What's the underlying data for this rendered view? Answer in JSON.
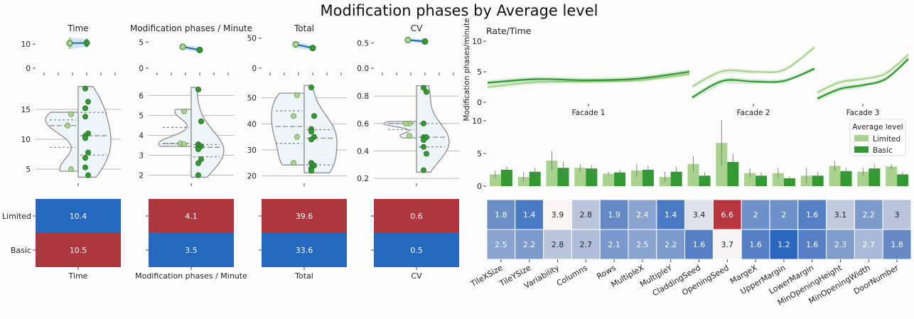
{
  "title": "Modification phases by Average level",
  "colors": {
    "limited": "#a8d28e",
    "basic": "#339933",
    "red": "#ad363f",
    "blue": "#2468c0",
    "violin_fill": "#eef5f8",
    "violin_edge": "#8c8c8c",
    "trend": "#2372b8"
  },
  "chart_data": [
    {
      "type": "dot",
      "panel": "Time",
      "title": "Time",
      "series": [
        {
          "name": "Limited",
          "values": [
            10.4
          ],
          "ci": [
            8.0,
            12.8
          ]
        },
        {
          "name": "Basic",
          "values": [
            10.5
          ],
          "ci": [
            8.8,
            12.2
          ]
        }
      ],
      "ylim": [
        0,
        13
      ],
      "yticks": [
        0,
        10
      ],
      "ytick_labels": [
        "0",
        "10"
      ]
    },
    {
      "type": "violin",
      "panel": "Time",
      "series": [
        {
          "name": "Limited",
          "values": [
            14.2,
            12.3,
            5.0
          ]
        },
        {
          "name": "Basic",
          "values": [
            18.5,
            16.3,
            15.2,
            13.8,
            11.0,
            10.6,
            10.2,
            7.8,
            6.9,
            5.3,
            4.0
          ]
        }
      ],
      "ylim": [
        3,
        20
      ],
      "yticks": [
        5,
        10,
        15
      ],
      "ytick_labels": [
        "5",
        "10",
        "15"
      ]
    },
    {
      "type": "heatmap",
      "panel": "Time",
      "rows": [
        "Limited",
        "Basic"
      ],
      "values": [
        [
          10.4
        ],
        [
          10.5
        ]
      ],
      "labels": [
        [
          "10.4"
        ],
        [
          "10.5"
        ]
      ],
      "colors": [
        [
          "#2468c0"
        ],
        [
          "#ad363f"
        ]
      ],
      "xlabel": "Time"
    },
    {
      "type": "dot",
      "panel": "Modification phases / Minute",
      "title": "Modification phases / Minute",
      "series": [
        {
          "name": "Limited",
          "values": [
            4.1
          ],
          "ci": [
            3.6,
            4.6
          ]
        },
        {
          "name": "Basic",
          "values": [
            3.5
          ],
          "ci": [
            3.0,
            4.0
          ]
        }
      ],
      "ylim": [
        0,
        6
      ],
      "yticks": [
        0,
        5
      ],
      "ytick_labels": [
        "0",
        "5"
      ]
    },
    {
      "type": "violin",
      "panel": "Modification phases / Minute",
      "series": [
        {
          "name": "Limited",
          "values": [
            5.2,
            3.6,
            3.55
          ]
        },
        {
          "name": "Basic",
          "values": [
            6.3,
            4.7,
            3.55,
            3.5,
            3.45,
            3.35,
            3.3,
            2.8,
            2.6,
            2.0
          ]
        }
      ],
      "ylim": [
        1.7,
        6.8
      ],
      "yticks": [
        2,
        3,
        4,
        5,
        6
      ],
      "ytick_labels": [
        "2",
        "3",
        "4",
        "5",
        "6"
      ]
    },
    {
      "type": "heatmap",
      "panel": "Modification phases / Minute",
      "rows": [
        "Limited",
        "Basic"
      ],
      "values": [
        [
          4.1
        ],
        [
          3.5
        ]
      ],
      "labels": [
        [
          "4.1"
        ],
        [
          "3.5"
        ]
      ],
      "colors": [
        [
          "#ad363f"
        ],
        [
          "#2468c0"
        ]
      ],
      "xlabel": "Modification phases / Minute"
    },
    {
      "type": "dot",
      "panel": "Total",
      "title": "Total",
      "series": [
        {
          "name": "Limited",
          "values": [
            39.6
          ],
          "ci": [
            34,
            45
          ]
        },
        {
          "name": "Basic",
          "values": [
            33.6
          ],
          "ci": [
            29,
            38
          ]
        }
      ],
      "ylim": [
        0,
        52
      ],
      "yticks": [
        0,
        50
      ],
      "ytick_labels": [
        "0",
        "50"
      ]
    },
    {
      "type": "violin",
      "panel": "Total",
      "series": [
        {
          "name": "Limited",
          "values": [
            51,
            43,
            35,
            25
          ]
        },
        {
          "name": "Basic",
          "values": [
            54,
            43,
            38,
            37,
            35,
            34,
            25,
            24,
            23,
            22
          ]
        }
      ],
      "ylim": [
        18,
        57
      ],
      "yticks": [
        20,
        30,
        40,
        50
      ],
      "ytick_labels": [
        "20",
        "30",
        "40",
        "50"
      ]
    },
    {
      "type": "heatmap",
      "panel": "Total",
      "rows": [
        "Limited",
        "Basic"
      ],
      "values": [
        [
          39.6
        ],
        [
          33.6
        ]
      ],
      "labels": [
        [
          "39.6"
        ],
        [
          "33.6"
        ]
      ],
      "colors": [
        [
          "#ad363f"
        ],
        [
          "#2468c0"
        ]
      ],
      "xlabel": "Total"
    },
    {
      "type": "dot",
      "panel": "CV",
      "title": "CV",
      "series": [
        {
          "name": "Limited",
          "values": [
            0.56
          ],
          "ci": [
            0.53,
            0.59
          ]
        },
        {
          "name": "Basic",
          "values": [
            0.53
          ],
          "ci": [
            0.48,
            0.58
          ]
        }
      ],
      "ylim": [
        0,
        0.62
      ],
      "yticks": [
        0.0,
        0.5
      ],
      "ytick_labels": [
        "0.0",
        "0.5"
      ]
    },
    {
      "type": "violin",
      "panel": "CV",
      "series": [
        {
          "name": "Limited",
          "values": [
            0.6,
            0.6,
            0.51
          ]
        },
        {
          "name": "Basic",
          "values": [
            0.86,
            0.83,
            0.6,
            0.5,
            0.5,
            0.48,
            0.43,
            0.38,
            0.26
          ]
        }
      ],
      "ylim": [
        0.18,
        0.92
      ],
      "yticks": [
        0.2,
        0.4,
        0.6,
        0.8
      ],
      "ytick_labels": [
        "0.2",
        "0.4",
        "0.6",
        "0.8"
      ]
    },
    {
      "type": "heatmap",
      "panel": "CV",
      "rows": [
        "Limited",
        "Basic"
      ],
      "values": [
        [
          0.6
        ],
        [
          0.5
        ]
      ],
      "labels": [
        [
          "0.6"
        ],
        [
          "0.5"
        ]
      ],
      "colors": [
        [
          "#ad363f"
        ],
        [
          "#2468c0"
        ]
      ],
      "xlabel": "CV"
    },
    {
      "type": "line",
      "title": "Rate/Time",
      "ylabel": "Modification phases/minute",
      "ylim": [
        0,
        10
      ],
      "yticks": [
        0,
        5,
        10
      ],
      "ytick_labels": [
        "0",
        "5",
        "10"
      ],
      "facets": [
        {
          "name": "Facade 1",
          "x": [
            0,
            0.25,
            0.5,
            0.75,
            1
          ],
          "series": [
            {
              "name": "Limited",
              "values": [
                2.5,
                3.3,
                3.4,
                3.6,
                4.6
              ]
            },
            {
              "name": "Basic",
              "values": [
                3.2,
                3.8,
                3.6,
                3.9,
                5.0
              ]
            }
          ]
        },
        {
          "name": "Facade 2",
          "x": [
            0,
            0.25,
            0.5,
            0.75,
            1
          ],
          "series": [
            {
              "name": "Limited",
              "values": [
                2.6,
                5.1,
                5.0,
                5.3,
                9.0
              ]
            },
            {
              "name": "Basic",
              "values": [
                0.8,
                3.5,
                3.4,
                3.5,
                5.5
              ]
            }
          ]
        },
        {
          "name": "Facade 3",
          "x": [
            0,
            0.25,
            0.5,
            0.75,
            1
          ],
          "series": [
            {
              "name": "Limited",
              "values": [
                1.6,
                3.3,
                3.8,
                4.7,
                7.8
              ]
            },
            {
              "name": "Basic",
              "values": [
                0.6,
                2.2,
                2.8,
                3.8,
                7.1
              ]
            }
          ]
        }
      ]
    },
    {
      "type": "bar",
      "categories": [
        "TileXSize",
        "TileYSize",
        "Variability",
        "Columns",
        "Rows",
        "MultipleX",
        "MultipleY",
        "CladdingSeed",
        "OpeningSeed",
        "MargeX",
        "UpperMargin",
        "LowerMargin",
        "MinOpeningHeight",
        "MinOpeningWidth",
        "DoorNumber"
      ],
      "series": [
        {
          "name": "Limited",
          "values": [
            1.8,
            1.4,
            3.9,
            2.8,
            1.9,
            2.4,
            1.4,
            3.4,
            6.6,
            2.0,
            2.0,
            1.6,
            3.1,
            2.2,
            3.0
          ]
        },
        {
          "name": "Basic",
          "values": [
            2.5,
            2.2,
            2.8,
            2.7,
            2.1,
            2.5,
            2.2,
            1.6,
            3.7,
            1.6,
            1.2,
            1.6,
            2.3,
            2.7,
            1.8
          ]
        }
      ],
      "errors": {
        "Limited": [
          0.6,
          0.7,
          1.5,
          0.6,
          0.3,
          1.0,
          0.8,
          1.2,
          3.5,
          0.7,
          0.8,
          1.2,
          0.8,
          0.6,
          0.4
        ],
        "Basic": [
          0.5,
          0.6,
          0.9,
          0.5,
          0.4,
          0.6,
          0.8,
          0.5,
          1.3,
          0.5,
          0.3,
          0.6,
          0.5,
          0.7,
          0.4
        ]
      },
      "ylim": [
        0,
        10
      ],
      "yticks": [
        0,
        5,
        10
      ],
      "ytick_labels": [
        "0",
        "5",
        "10"
      ],
      "legend": {
        "title": "Average level",
        "entries": [
          "Limited",
          "Basic"
        ],
        "placement": "top-right"
      }
    },
    {
      "type": "heatmap",
      "rows": [
        "Limited",
        "Basic"
      ],
      "categories": [
        "TileXSize",
        "TileYSize",
        "Variability",
        "Columns",
        "Rows",
        "MultipleX",
        "MultipleY",
        "CladdingSeed",
        "OpeningSeed",
        "MargeX",
        "UpperMargin",
        "LowerMargin",
        "MinOpeningHeight",
        "MinOpeningWidth",
        "DoorNumber"
      ],
      "labels": [
        [
          "1.8",
          "1.4",
          "3.9",
          "2.8",
          "1.9",
          "2.4",
          "1.4",
          "3.4",
          "6.6",
          "2",
          "2",
          "1.6",
          "3.1",
          "2.2",
          "3"
        ],
        [
          "2.5",
          "2.2",
          "2.8",
          "2.7",
          "2.1",
          "2.5",
          "2.2",
          "1.6",
          "3.7",
          "1.6",
          "1.2",
          "1.6",
          "2.3",
          "2.7",
          "1.8"
        ]
      ],
      "colors": [
        [
          "#6a8fc6",
          "#4a7ac4",
          "#f9f5f4",
          "#b9c6de",
          "#6489c4",
          "#8aa3cf",
          "#4a7ac4",
          "#dfe2ea",
          "#b6353f",
          "#6d91c8",
          "#6d91c8",
          "#557fc4",
          "#c0cbe0",
          "#7c9acc",
          "#b6c3da"
        ],
        [
          "#8aa3cf",
          "#7c9acc",
          "#b9c6de",
          "#afbdd9",
          "#7a98cb",
          "#8aa3cf",
          "#7c9acc",
          "#557fc4",
          "#f6f4f4",
          "#557fc4",
          "#2a66c0",
          "#557fc4",
          "#7f9ccb",
          "#a9bad8",
          "#6489c4"
        ]
      ]
    }
  ]
}
